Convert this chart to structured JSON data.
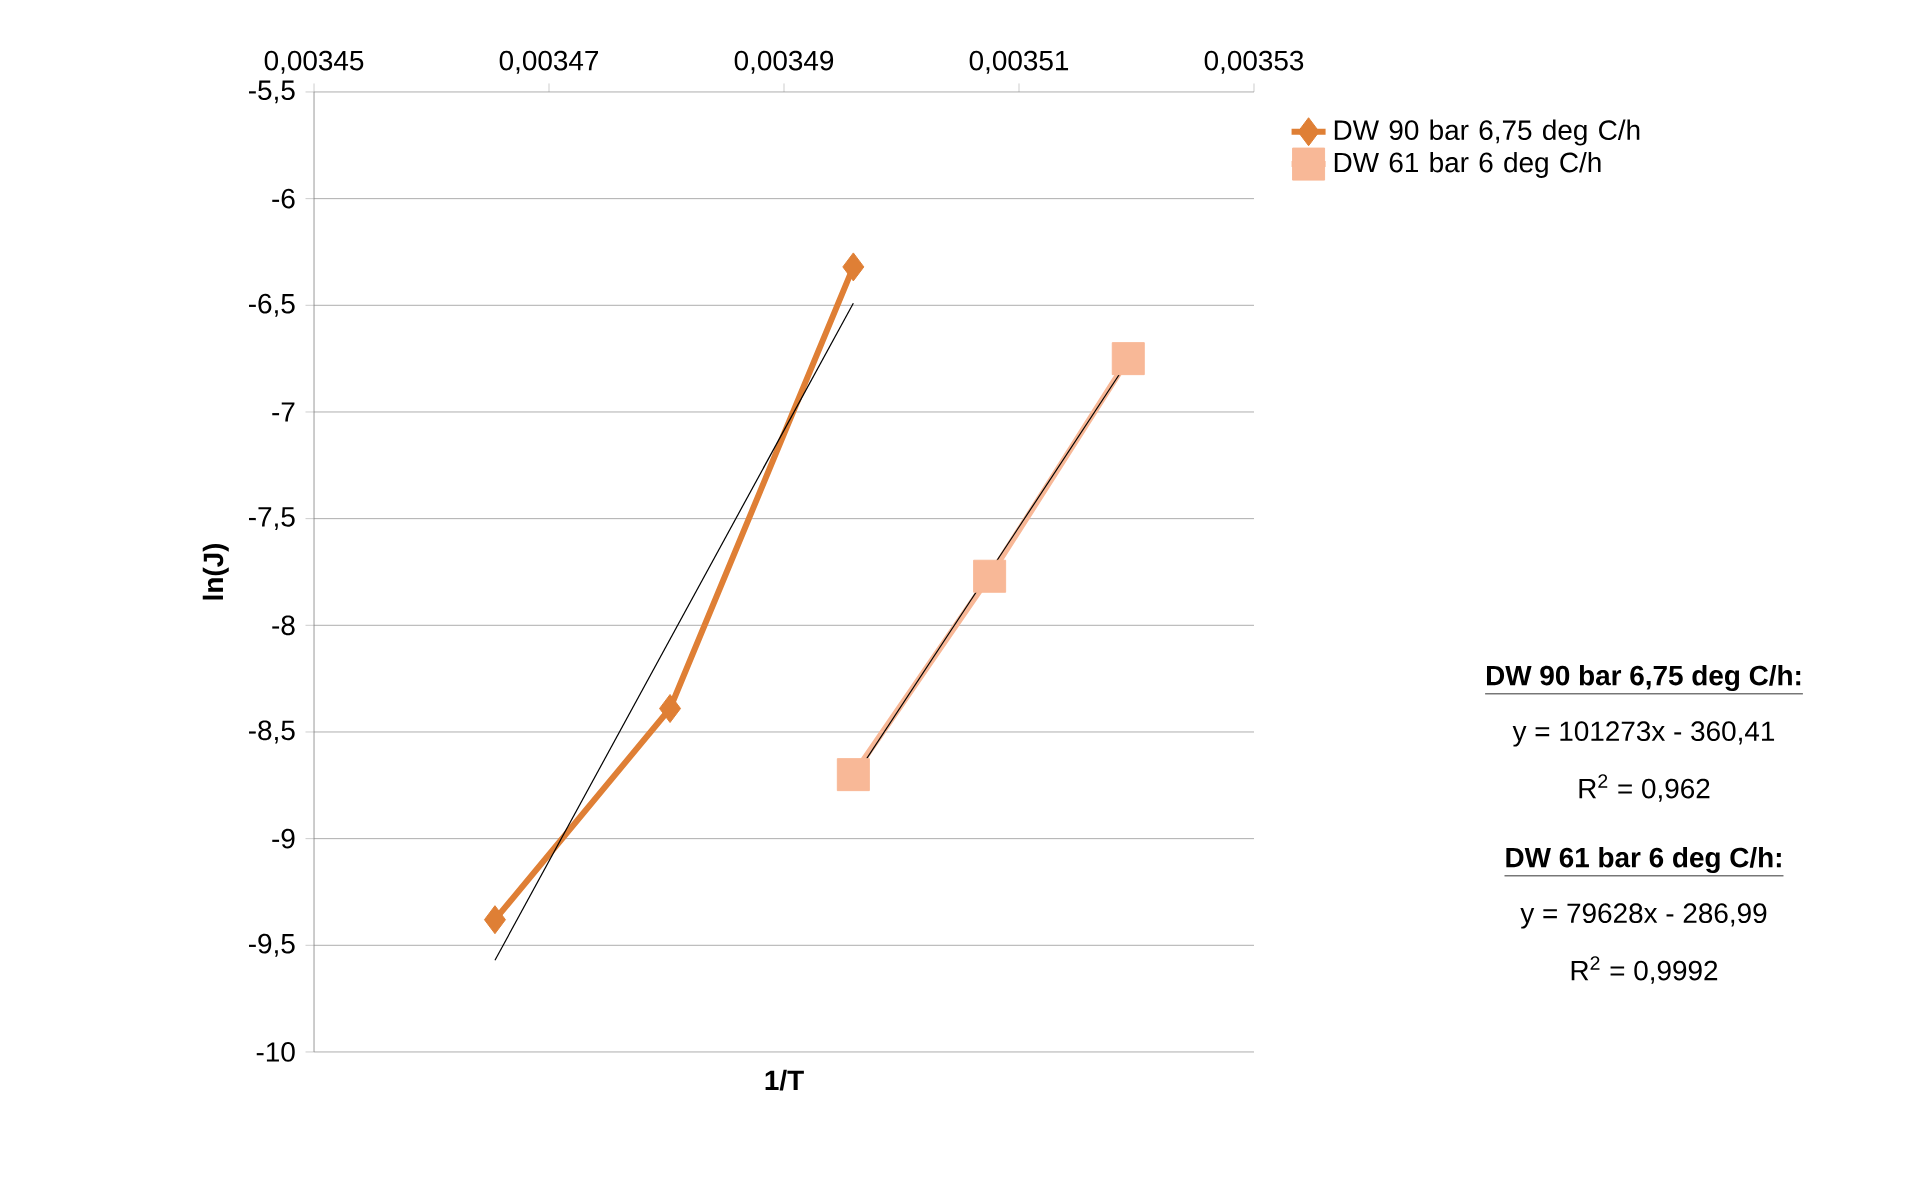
{
  "chart_data": {
    "type": "line",
    "xlabel": "1/T",
    "ylabel": "ln(J)",
    "xlim": [
      0.00345,
      0.00353
    ],
    "xticks": [
      {
        "value": 0.00345,
        "label": "0,00345"
      },
      {
        "value": 0.00347,
        "label": "0,00347"
      },
      {
        "value": 0.00349,
        "label": "0,00349"
      },
      {
        "value": 0.00351,
        "label": "0,00351"
      },
      {
        "value": 0.00353,
        "label": "0,00353"
      }
    ],
    "ylim": [
      -10,
      -5.5
    ],
    "yticks": [
      {
        "value": -10,
        "label": "-10"
      },
      {
        "value": -9.5,
        "label": "-9,5"
      },
      {
        "value": -9,
        "label": "-9"
      },
      {
        "value": -8.5,
        "label": "-8,5"
      },
      {
        "value": -8,
        "label": "-8"
      },
      {
        "value": -7.5,
        "label": "-7,5"
      },
      {
        "value": -7,
        "label": "-7"
      },
      {
        "value": -6.5,
        "label": "-6,5"
      },
      {
        "value": -6,
        "label": "-6"
      },
      {
        "value": -5.5,
        "label": "-5,5"
      }
    ],
    "grid": "y",
    "legend": "right",
    "series": [
      {
        "name": "DW 90 bar 6,75 deg C/h",
        "color": "#df7f35",
        "marker": "diamond",
        "x": [
          0.0034654,
          0.0034803,
          0.0034959
        ],
        "values": [
          -9.38,
          -8.39,
          -6.32
        ]
      },
      {
        "name": "DW 61 bar 6 deg C/h",
        "color": "#f8b897",
        "marker": "square",
        "x": [
          0.0034959,
          0.0035075,
          0.0035193
        ],
        "values": [
          -8.7,
          -7.77,
          -6.75
        ]
      },
      {
        "type": "line",
        "color": "#000000",
        "marker": "none",
        "x": [
          0.0034654,
          0.0034959
        ],
        "values": [
          -9.57,
          -6.49
        ]
      },
      {
        "type": "line",
        "color": "#000000",
        "marker": "none",
        "x": [
          0.0034959,
          0.0035193
        ],
        "values": [
          -8.72,
          -6.76
        ]
      }
    ],
    "annotations": [
      "DW 90 bar 6,75 deg C/h:",
      "y = 101273x - 360,41",
      "R$^{2}$ = 0,962",
      "DW 61 bar 6 deg C/h:",
      "y = 79628x - 286,99",
      "R$^{2}$ = 0,9992"
    ]
  }
}
